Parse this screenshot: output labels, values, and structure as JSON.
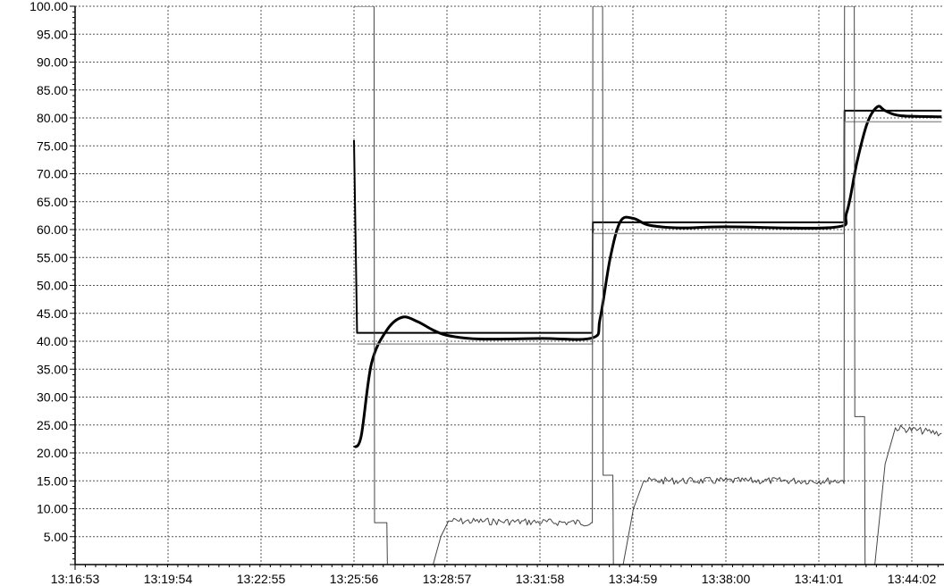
{
  "colors": {
    "background": "#ffffff",
    "grid": "#555555",
    "setpoint": "#000000",
    "process_value": "#000000",
    "reference": "#9a9a9a",
    "output": "#444444"
  },
  "chart_data": {
    "type": "line",
    "title": "",
    "xlabel": "",
    "ylabel": "",
    "grid": true,
    "x_type": "time",
    "xlim": [
      "13:16:53",
      "13:45:00"
    ],
    "ylim": [
      0,
      100
    ],
    "y_ticks": [
      5,
      10,
      15,
      20,
      25,
      30,
      35,
      40,
      45,
      50,
      55,
      60,
      65,
      70,
      75,
      80,
      85,
      90,
      95,
      100
    ],
    "y_tick_labels": [
      "5.00",
      "10.00",
      "15.00",
      "20.00",
      "25.00",
      "30.00",
      "35.00",
      "40.00",
      "45.00",
      "50.00",
      "55.00",
      "60.00",
      "65.00",
      "70.00",
      "75.00",
      "80.00",
      "85.00",
      "90.00",
      "95.00",
      "100.00"
    ],
    "x_ticks": [
      "13:16:53",
      "13:19:54",
      "13:22:55",
      "13:25:56",
      "13:28:57",
      "13:31:58",
      "13:34:59",
      "13:38:00",
      "13:41:01",
      "13:44:02"
    ],
    "series": [
      {
        "color": "#000000",
        "style": "step",
        "x": [
          "13:25:56",
          "13:26:02",
          "13:33:40",
          "13:33:41",
          "13:41:50",
          "13:41:51",
          "13:45:00"
        ],
        "y": [
          76,
          41.5,
          41.5,
          61.3,
          61.3,
          81.3,
          81.3
        ]
      },
      {
        "color": "#000000",
        "style": "smooth",
        "x": [
          "13:25:56",
          "13:26:10",
          "13:26:30",
          "13:27:00",
          "13:27:30",
          "13:28:00",
          "13:28:30",
          "13:29:00",
          "13:30:00",
          "13:32:00",
          "13:33:40",
          "13:33:55",
          "13:34:15",
          "13:34:35",
          "13:35:00",
          "13:35:30",
          "13:36:30",
          "13:38:00",
          "13:41:30",
          "13:41:55",
          "13:42:15",
          "13:42:35",
          "13:42:55",
          "13:43:10",
          "13:43:40",
          "13:45:00"
        ],
        "y": [
          21,
          23,
          36,
          42,
          44.3,
          43.5,
          42,
          41,
          40.4,
          40.5,
          40.6,
          44,
          55,
          61.5,
          62,
          60.8,
          60.3,
          60.5,
          60.4,
          63,
          72,
          79,
          82,
          81.3,
          80.4,
          80.2
        ]
      },
      {
        "color": "#9a9a9a",
        "style": "step",
        "x": [
          "13:26:02",
          "13:33:40",
          "13:33:41",
          "13:41:50",
          "13:41:51",
          "13:45:00"
        ],
        "y": [
          39.5,
          39.5,
          59.3,
          59.3,
          79.3,
          79.3
        ]
      },
      {
        "color": "#444444",
        "style": "step",
        "x": [
          "13:25:56",
          "13:26:03",
          "13:26:35",
          "13:26:36",
          "13:27:00",
          "13:27:01",
          "13:28:30",
          "13:28:45",
          "13:29:00",
          "13:33:38",
          "13:33:40",
          "13:33:41",
          "13:34:00",
          "13:34:01",
          "13:34:20",
          "13:34:21",
          "13:34:40",
          "13:35:00",
          "13:35:20",
          "13:41:48",
          "13:41:50",
          "13:41:51",
          "13:42:10",
          "13:42:11",
          "13:42:30",
          "13:42:31",
          "13:42:50",
          "13:43:10",
          "13:43:30",
          "13:45:00"
        ],
        "y": [
          100,
          100,
          100,
          7.5,
          7.5,
          0,
          0,
          5,
          7.8,
          7.5,
          7.5,
          100,
          100,
          16,
          16,
          0,
          0,
          10,
          15,
          15,
          14.5,
          100,
          100,
          26.5,
          26.5,
          0,
          0,
          18,
          24.5,
          23.5
        ]
      }
    ]
  }
}
